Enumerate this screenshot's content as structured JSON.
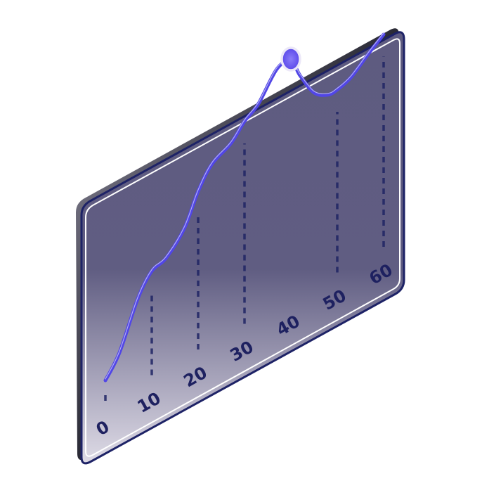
{
  "chart_data": {
    "type": "line",
    "title": "",
    "xlabel": "",
    "ylabel": "",
    "x_ticks": [
      0,
      10,
      20,
      30,
      40,
      50,
      60
    ],
    "x_tick_labels": [
      "0",
      "10",
      "20",
      "30",
      "40",
      "50",
      "60"
    ],
    "xlim": [
      0,
      60
    ],
    "ylim": [
      0,
      100
    ],
    "grid": true,
    "highlight": {
      "x": 40,
      "y": 92
    },
    "series": [
      {
        "x": [
          0,
          3,
          7,
          10,
          13,
          17,
          20,
          23,
          27,
          30,
          33,
          37,
          40,
          42,
          45,
          48,
          50,
          53,
          57,
          60
        ],
        "values": [
          4,
          12,
          30,
          38,
          40,
          48,
          60,
          68,
          72,
          78,
          82,
          92,
          92,
          84,
          74,
          70,
          70,
          72,
          78,
          82
        ],
        "color": "#5146e6"
      }
    ]
  },
  "colors": {
    "panel_fill_top": "#5e5b80",
    "panel_fill_bottom": "#dedbe6",
    "frame": "#1d2266",
    "frame_edge": "#0a0a10",
    "border_light": "#ffffff",
    "tick_text": "#1e2160",
    "line": "#5146e6",
    "line_highlight": "#ffffff",
    "bar": "#6235e8",
    "bar_dark": "#140f44",
    "marker_fill": "#6e5df4",
    "marker_ring": "#ece8f8"
  }
}
